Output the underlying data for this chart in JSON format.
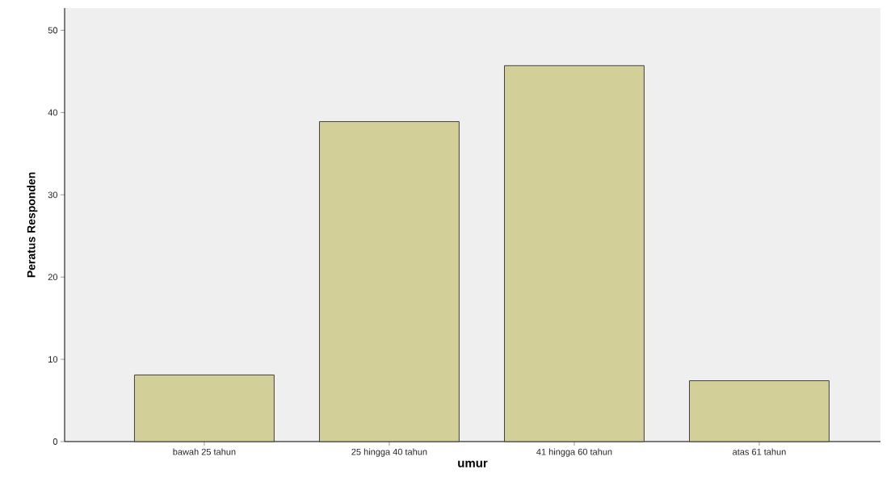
{
  "chart_data": {
    "type": "bar",
    "xlabel": "umur",
    "ylabel": "Peratus Responden",
    "categories": [
      "bawah 25 tahun",
      "25 hingga 40 tahun",
      "41 hingga 60 tahun",
      "atas 61 tahun"
    ],
    "values": [
      8.1,
      38.9,
      45.7,
      7.4
    ],
    "color": "#d3cf99",
    "ylim": [
      0,
      52.7
    ],
    "yticks": [
      0,
      10,
      20,
      30,
      40,
      50
    ],
    "grid": false
  }
}
